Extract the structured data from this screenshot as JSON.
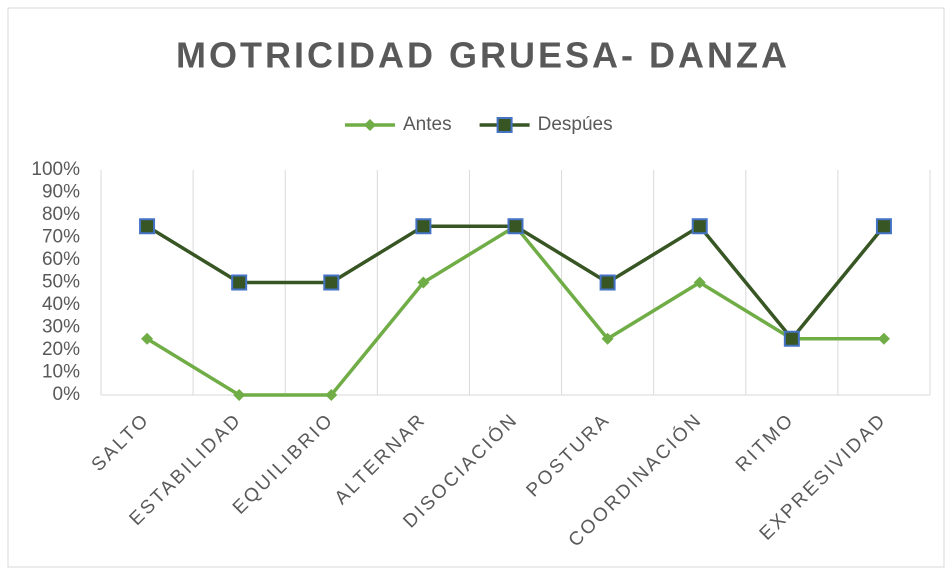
{
  "chart_data": {
    "type": "line",
    "title": "MOTRICIDAD  GRUESA- DANZA",
    "categories": [
      "SALTO",
      "ESTABILIDAD",
      "EQUILIBRIO",
      "ALTERNAR",
      "DISOCIACIÓN",
      "POSTURA",
      "COORDINACIÓN",
      "RITMO",
      "EXPRESIVIDAD"
    ],
    "series": [
      {
        "name": "Antes",
        "color": "#70ad47",
        "marker": "diamond",
        "values": [
          25,
          0,
          0,
          50,
          75,
          25,
          50,
          25,
          25
        ]
      },
      {
        "name": "Despúes",
        "color": "#375623",
        "marker": "square",
        "marker_edge_color": "#4472c4",
        "values": [
          75,
          50,
          50,
          75,
          75,
          50,
          75,
          25,
          75
        ]
      }
    ],
    "ylim": [
      0,
      100
    ],
    "yticks": [
      {
        "value": 0,
        "label": "0%"
      },
      {
        "value": 10,
        "label": "10%"
      },
      {
        "value": 20,
        "label": "20%"
      },
      {
        "value": 30,
        "label": "30%"
      },
      {
        "value": 40,
        "label": "40%"
      },
      {
        "value": 50,
        "label": "50%"
      },
      {
        "value": 60,
        "label": "60%"
      },
      {
        "value": 70,
        "label": "70%"
      },
      {
        "value": 80,
        "label": "80%"
      },
      {
        "value": 90,
        "label": "90%"
      },
      {
        "value": 100,
        "label": "100%"
      }
    ],
    "grid": "x",
    "legend": "top"
  }
}
